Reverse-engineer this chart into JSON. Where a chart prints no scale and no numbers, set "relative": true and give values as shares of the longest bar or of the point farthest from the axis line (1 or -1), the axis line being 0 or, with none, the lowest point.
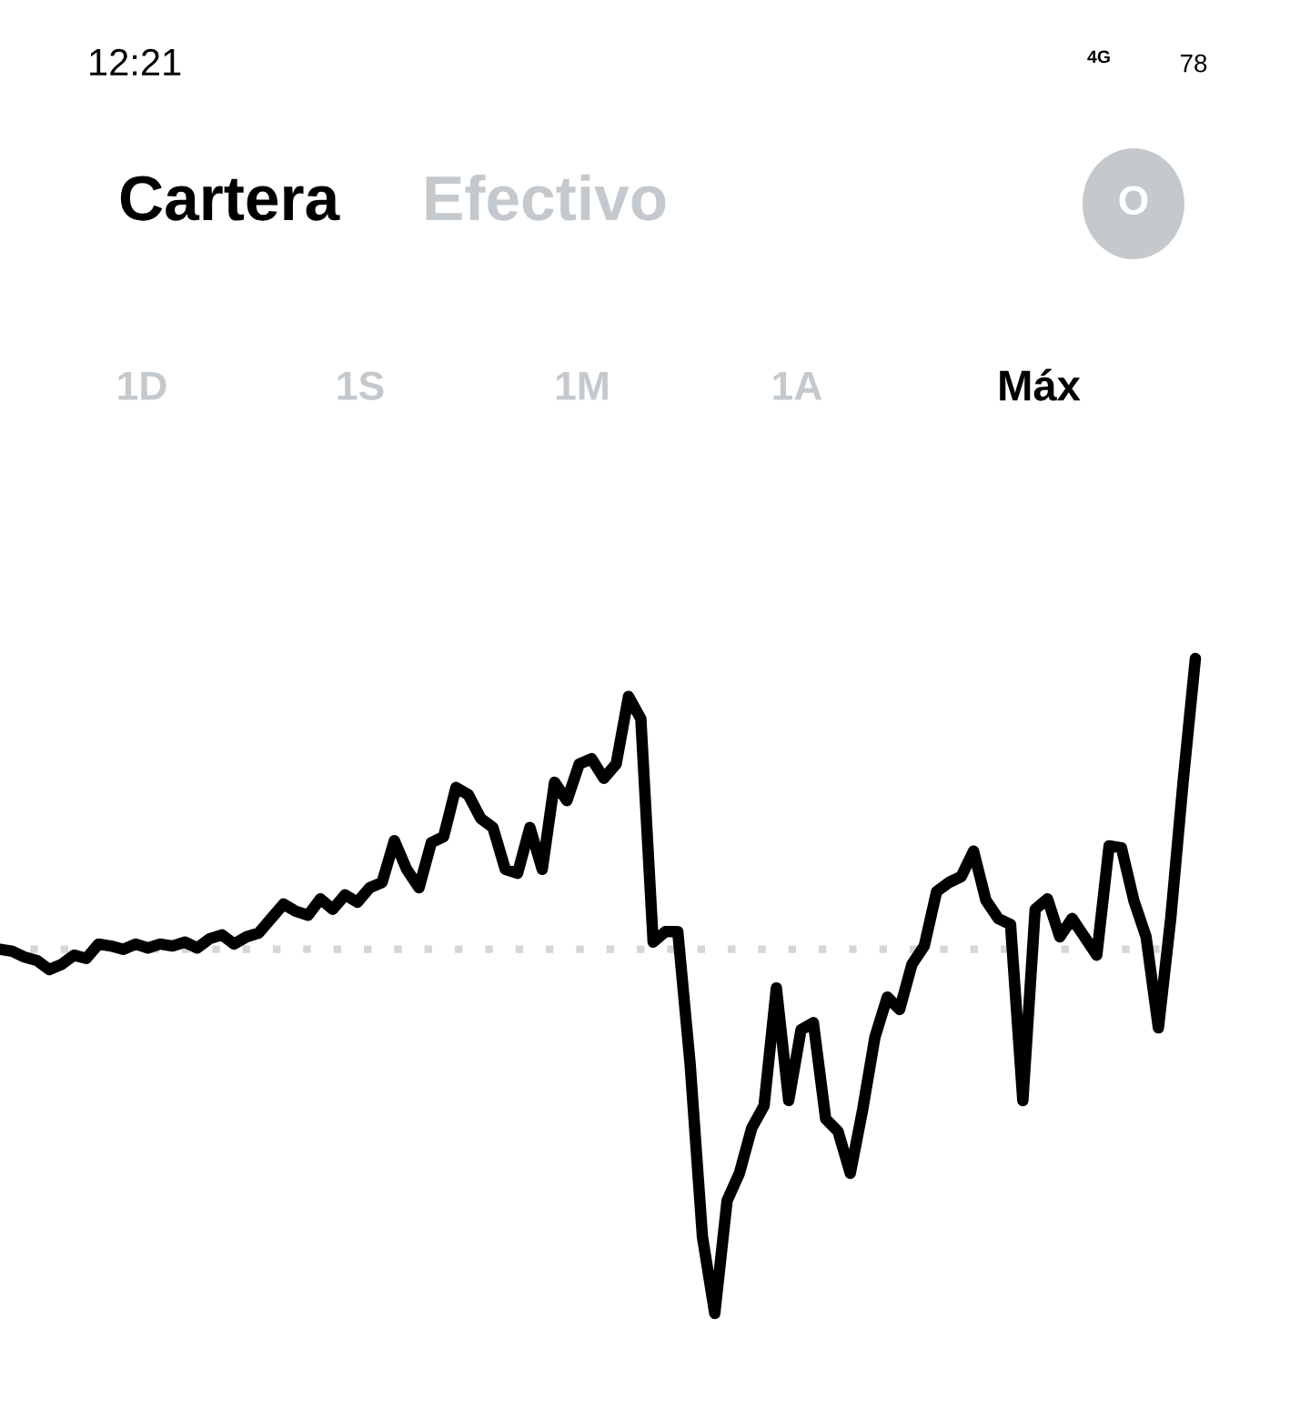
{
  "chart_data": {
    "type": "line",
    "title": "Cartera",
    "subtitle": "Efectivo",
    "relative": true,
    "annotations": [
      "1D",
      "1S",
      "1M",
      "1A",
      "Máx",
      "12:21",
      "78",
      "4G",
      "O"
    ],
    "categories": [
      null,
      null,
      null,
      null,
      null,
      null,
      null,
      null,
      null,
      null,
      null,
      null,
      null,
      null,
      null,
      null,
      null,
      null,
      null,
      null,
      null,
      null,
      null,
      null,
      null,
      null,
      null,
      null,
      null,
      null,
      null,
      null,
      null,
      null,
      null,
      null,
      null,
      null,
      null,
      null,
      null,
      null,
      null,
      null,
      null,
      null,
      null,
      null,
      null,
      null,
      null,
      null,
      null,
      null,
      null,
      null,
      null,
      null,
      null,
      null,
      null,
      null,
      null,
      null,
      null,
      null,
      null,
      null,
      null,
      null,
      null,
      null,
      null,
      null,
      null,
      null,
      null,
      null,
      null,
      null,
      null,
      null,
      null,
      null,
      null,
      null,
      null,
      null,
      null,
      null,
      null,
      null,
      null,
      null,
      null,
      null,
      null,
      null
    ],
    "series": [
      {
        "color": "#000000",
        "values": [
          0.556,
          0.553,
          0.544,
          0.539,
          0.525,
          0.533,
          0.547,
          0.542,
          0.564,
          0.561,
          0.556,
          0.564,
          0.558,
          0.564,
          0.561,
          0.567,
          0.558,
          0.572,
          0.578,
          0.564,
          0.575,
          0.581,
          0.603,
          0.625,
          0.614,
          0.608,
          0.633,
          0.617,
          0.639,
          0.628,
          0.65,
          0.658,
          0.722,
          0.678,
          0.65,
          0.719,
          0.728,
          0.803,
          0.792,
          0.756,
          0.742,
          0.678,
          0.672,
          0.742,
          0.678,
          0.811,
          0.783,
          0.839,
          0.847,
          0.817,
          0.839,
          0.942,
          0.908,
          0.567,
          0.583,
          0.583,
          0.381,
          0.117,
          0,
          0.172,
          0.214,
          0.283,
          0.317,
          0.497,
          0.325,
          0.433,
          0.444,
          0.297,
          0.278,
          0.214,
          0.311,
          0.422,
          0.483,
          0.464,
          0.533,
          0.561,
          0.644,
          0.658,
          0.667,
          0.706,
          0.631,
          0.603,
          0.594,
          0.325,
          0.617,
          0.633,
          0.575,
          0.603,
          0.575,
          0.547,
          0.714,
          0.711,
          0.631,
          0.575,
          0.436,
          0.603,
          0.811,
          1
        ]
      }
    ],
    "ref_lines": [
      {
        "axis": "y",
        "value": 0.556,
        "color": "#d3d6da",
        "line_style": "dotted"
      }
    ],
    "grid": false,
    "legend": false
  }
}
